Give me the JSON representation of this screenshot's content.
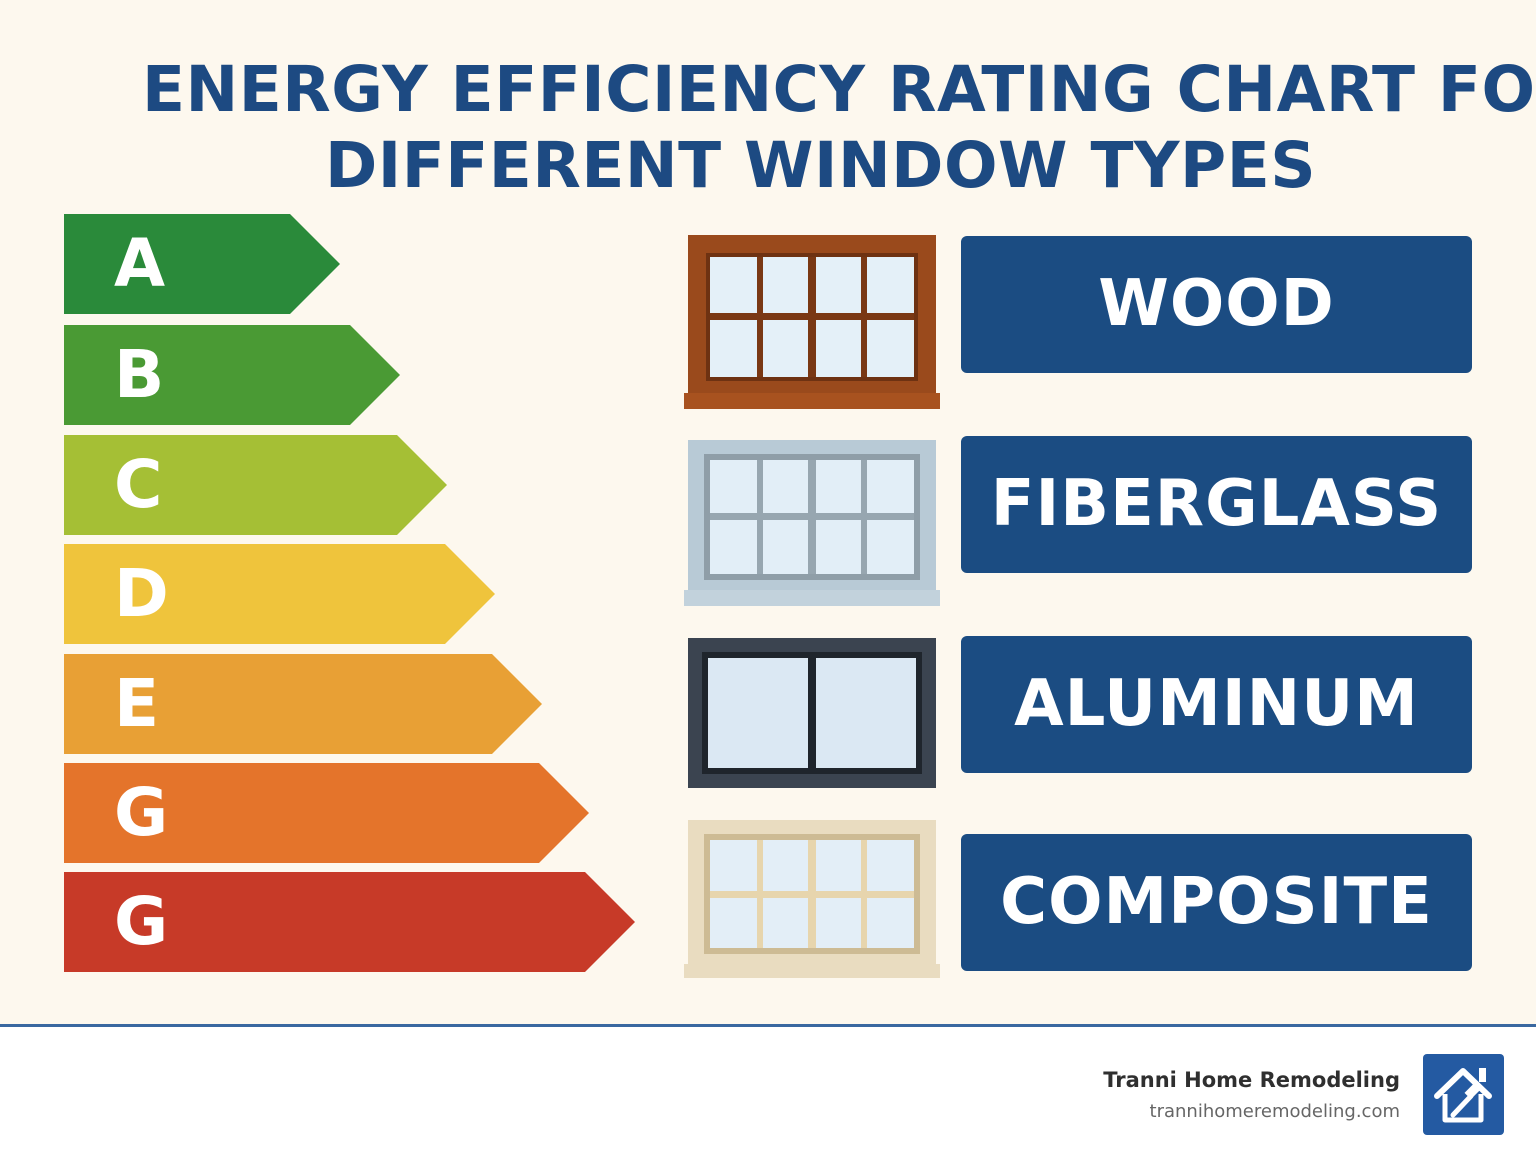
{
  "title": {
    "line1": "ENERGY EFFICIENCY RATING CHART FOR",
    "line2": "DIFFERENT WINDOW TYPES"
  },
  "ratings": [
    {
      "label": "A",
      "color": "#2a8a3a"
    },
    {
      "label": "B",
      "color": "#4a9a34"
    },
    {
      "label": "C",
      "color": "#a5bf35"
    },
    {
      "label": "D",
      "color": "#efc43c"
    },
    {
      "label": "E",
      "color": "#e8a035"
    },
    {
      "label": "G",
      "color": "#e4742b"
    },
    {
      "label": "G",
      "color": "#c73a28"
    }
  ],
  "window_types": [
    {
      "label": "WOOD",
      "icon": "wood-window-icon"
    },
    {
      "label": "FIBERGLASS",
      "icon": "fiberglass-window-icon"
    },
    {
      "label": "ALUMINUM",
      "icon": "aluminum-window-icon"
    },
    {
      "label": "COMPOSITE",
      "icon": "composite-window-icon"
    }
  ],
  "footer": {
    "brand_name": "Tranni Home Remodeling",
    "brand_url": "trannihomeremodeling.com",
    "logo_icon": "house-hammer-icon"
  },
  "colors": {
    "title": "#1d4a82",
    "type_box": "#1b4c82",
    "background": "#fdf8ee"
  }
}
